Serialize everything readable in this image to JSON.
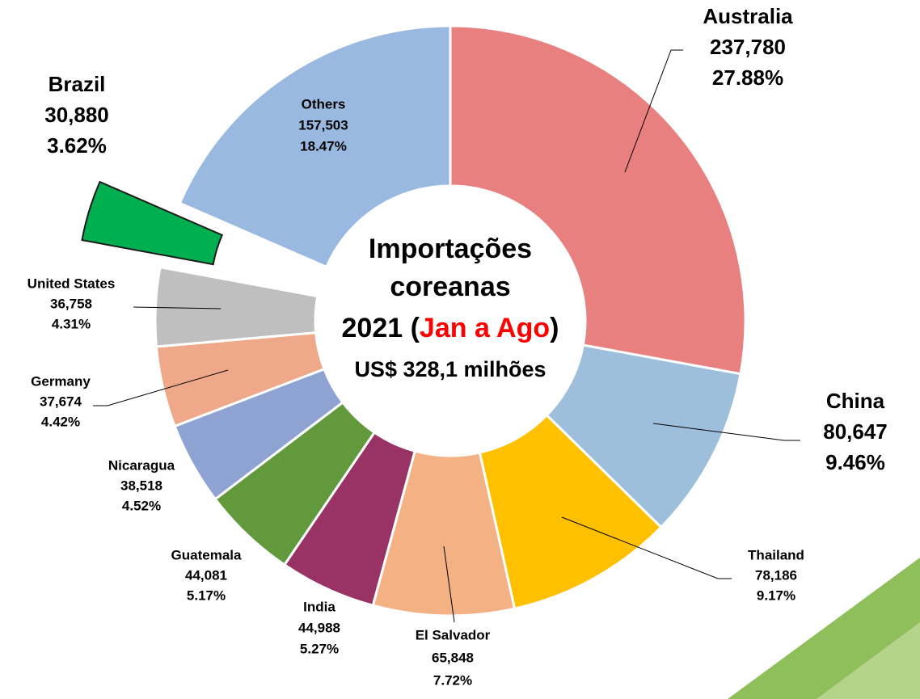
{
  "chart_data": {
    "type": "donut",
    "categories": [
      "Australia",
      "China",
      "Thailand",
      "El Salvador",
      "India",
      "Guatemala",
      "Nicaragua",
      "Germany",
      "United States",
      "Brazil",
      "Others"
    ],
    "values": [
      237780,
      80647,
      78186,
      65848,
      44988,
      44081,
      38518,
      37674,
      36758,
      30880,
      157503
    ],
    "value_labels": [
      "237,780",
      "80,647",
      "78,186",
      "65,848",
      "44,988",
      "44,081",
      "38,518",
      "37,674",
      "36,758",
      "30,880",
      "157,503"
    ],
    "percent_labels": [
      "27.88%",
      "9.46%",
      "9.17%",
      "7.72%",
      "5.27%",
      "5.17%",
      "4.52%",
      "4.42%",
      "4.31%",
      "3.62%",
      "18.47%"
    ],
    "colors": [
      "#e88080",
      "#9dbfdc",
      "#ffc000",
      "#f4b183",
      "#993366",
      "#63993d",
      "#8fa3d3",
      "#f0a88a",
      "#bfbfbf",
      "#00b050",
      "#9ab9e0"
    ],
    "exploded": "Brazil",
    "center_text": {
      "line1": "Importações",
      "line2": "coreanas",
      "line3": [
        "2021 (",
        "Jan a Ago",
        ")"
      ],
      "line4": "US$ 328,1 milhões"
    }
  }
}
